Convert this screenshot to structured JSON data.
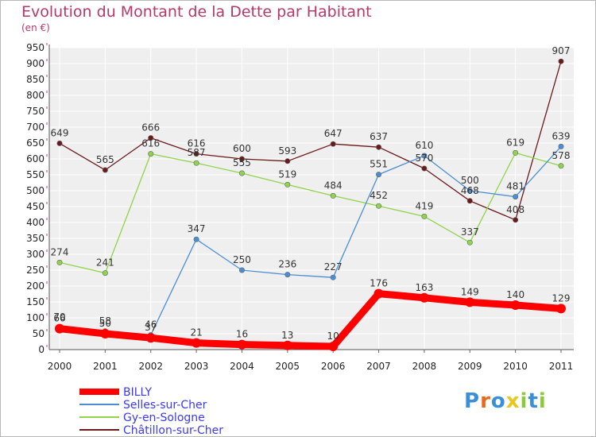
{
  "chart_data": {
    "type": "line",
    "title": "Evolution du Montant de la Dette par Habitant",
    "unit": "(en €)",
    "xlabel": "",
    "ylabel": "",
    "ylim": [
      0,
      950
    ],
    "ytick_step": 50,
    "grid": true,
    "legend_position": "bottom-left",
    "categories": [
      "2000",
      "2001",
      "2002",
      "2003",
      "2004",
      "2005",
      "2006",
      "2007",
      "2008",
      "2009",
      "2010",
      "2011"
    ],
    "series": [
      {
        "name": "BILLY",
        "color": "#ff0000",
        "values": [
          66,
          50,
          37,
          21,
          16,
          13,
          10,
          176,
          163,
          149,
          140,
          129
        ]
      },
      {
        "name": "Selles-sur-Cher",
        "color": "#4a8fd4",
        "values": [
          70,
          58,
          46,
          347,
          250,
          236,
          227,
          551,
          610,
          500,
          481,
          639
        ]
      },
      {
        "name": "Gy-en-Sologne",
        "color": "#8fd44a",
        "values": [
          274,
          241,
          616,
          587,
          555,
          519,
          484,
          452,
          419,
          337,
          619,
          578
        ]
      },
      {
        "name": "Châtillon-sur-Cher",
        "color": "#6b1a1a",
        "values": [
          649,
          565,
          666,
          616,
          600,
          593,
          647,
          637,
          570,
          468,
          408,
          907
        ]
      }
    ]
  },
  "logo": {
    "text": "Proxiti",
    "letters": [
      "P",
      "r",
      "o",
      "x",
      "i",
      "t",
      "i"
    ],
    "colors": [
      "#3a8fd8",
      "#e86a1a",
      "#3a8fd8",
      "#e8c81a",
      "#8fc83a",
      "#3a8fd8",
      "#8fc83a"
    ]
  }
}
